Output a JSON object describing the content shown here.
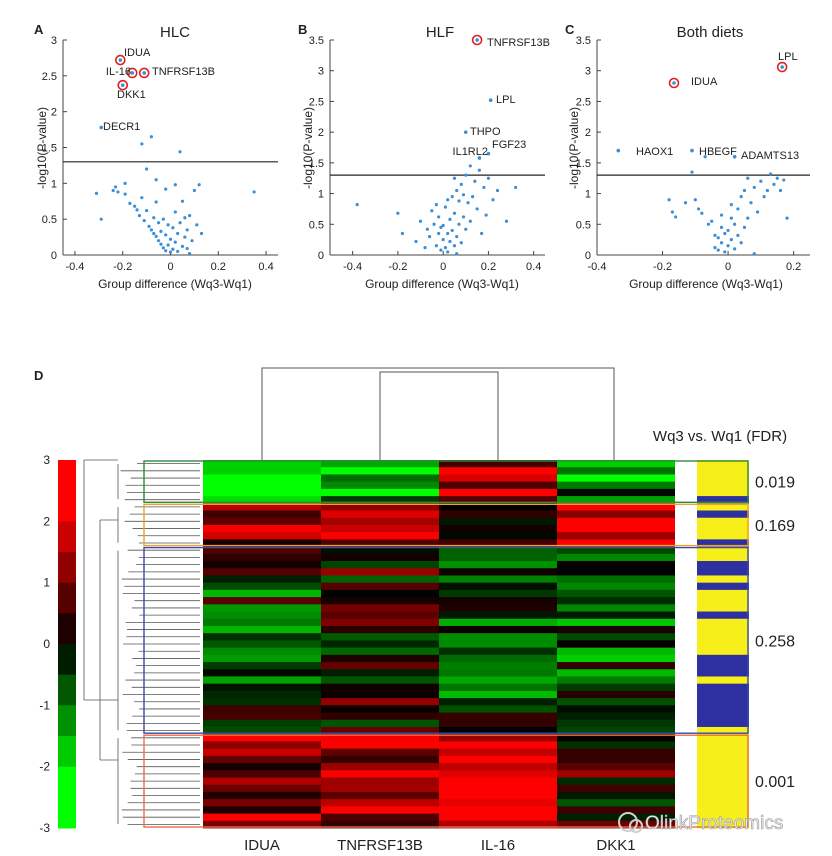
{
  "chart_data": [
    {
      "type": "scatter",
      "panel_label": "A",
      "title": "HLC",
      "xlabel": "Group difference (Wq3-Wq1)",
      "ylabel": "-log10(P-value)",
      "xlim": [
        -0.45,
        0.45
      ],
      "ylim": [
        0,
        3
      ],
      "xticks": [
        -0.4,
        -0.2,
        0,
        0.2,
        0.4
      ],
      "xtick_labels": [
        "-0.4",
        "-0.2",
        "0",
        "0.2",
        "0.4"
      ],
      "yticks": [
        0,
        0.5,
        1,
        1.5,
        2,
        2.5,
        3
      ],
      "ytick_labels": [
        "0",
        "0.5",
        "1",
        "1.5",
        "2",
        "2.5",
        "3"
      ],
      "threshold": 1.3,
      "labeled_points": [
        {
          "label": "IDUA",
          "x": -0.21,
          "y": 2.72,
          "circled": true
        },
        {
          "label": "IL-16",
          "x": -0.16,
          "y": 2.54,
          "circled": true
        },
        {
          "label": "TNFRSF13B",
          "x": -0.11,
          "y": 2.54,
          "circled": true
        },
        {
          "label": "DKK1",
          "x": -0.2,
          "y": 2.37,
          "circled": true
        },
        {
          "label": "DECR1",
          "x": -0.29,
          "y": 1.78,
          "circled": false
        }
      ],
      "points": [
        [
          -0.31,
          0.86
        ],
        [
          -0.29,
          0.5
        ],
        [
          -0.24,
          0.9
        ],
        [
          -0.23,
          0.95
        ],
        [
          -0.22,
          0.88
        ],
        [
          -0.19,
          1.0
        ],
        [
          -0.19,
          0.85
        ],
        [
          -0.17,
          0.72
        ],
        [
          -0.15,
          0.68
        ],
        [
          -0.14,
          0.63
        ],
        [
          -0.13,
          0.55
        ],
        [
          -0.12,
          1.55
        ],
        [
          -0.11,
          0.48
        ],
        [
          -0.1,
          0.62
        ],
        [
          -0.1,
          1.2
        ],
        [
          -0.09,
          0.4
        ],
        [
          -0.08,
          0.35
        ],
        [
          -0.08,
          1.65
        ],
        [
          -0.07,
          0.52
        ],
        [
          -0.07,
          0.3
        ],
        [
          -0.06,
          0.26
        ],
        [
          -0.06,
          1.05
        ],
        [
          -0.05,
          0.45
        ],
        [
          -0.05,
          0.2
        ],
        [
          -0.04,
          0.33
        ],
        [
          -0.04,
          0.15
        ],
        [
          -0.03,
          0.5
        ],
        [
          -0.03,
          0.1
        ],
        [
          -0.02,
          0.28
        ],
        [
          -0.02,
          0.06
        ],
        [
          -0.01,
          0.42
        ],
        [
          -0.01,
          0.14
        ],
        [
          0.0,
          0.04
        ],
        [
          0.0,
          0.22
        ],
        [
          0.01,
          0.08
        ],
        [
          0.01,
          0.38
        ],
        [
          0.02,
          0.18
        ],
        [
          0.02,
          0.6
        ],
        [
          0.03,
          0.3
        ],
        [
          0.03,
          0.05
        ],
        [
          0.04,
          1.44
        ],
        [
          0.04,
          0.45
        ],
        [
          0.05,
          0.12
        ],
        [
          0.05,
          0.75
        ],
        [
          0.06,
          0.25
        ],
        [
          0.06,
          0.52
        ],
        [
          0.07,
          0.35
        ],
        [
          0.07,
          0.09
        ],
        [
          0.08,
          0.55
        ],
        [
          0.09,
          0.2
        ],
        [
          0.1,
          0.9
        ],
        [
          0.11,
          0.42
        ],
        [
          0.12,
          0.98
        ],
        [
          0.13,
          0.3
        ],
        [
          0.35,
          0.88
        ],
        [
          0.08,
          0.02
        ],
        [
          -0.02,
          0.92
        ],
        [
          -0.12,
          0.8
        ],
        [
          0.02,
          0.98
        ],
        [
          -0.06,
          0.74
        ]
      ]
    },
    {
      "type": "scatter",
      "panel_label": "B",
      "title": "HLF",
      "xlabel": "Group difference (Wq3-Wq1)",
      "ylabel": "-log10(P-value)",
      "xlim": [
        -0.5,
        0.45
      ],
      "ylim": [
        0,
        3.5
      ],
      "xticks": [
        -0.4,
        -0.2,
        0,
        0.2,
        0.4
      ],
      "xtick_labels": [
        "-0.4",
        "-0.2",
        "0",
        "0.2",
        "0.4"
      ],
      "yticks": [
        0,
        0.5,
        1,
        1.5,
        2,
        2.5,
        3,
        3.5
      ],
      "ytick_labels": [
        "0",
        "0.5",
        "1",
        "1.5",
        "2",
        "2.5",
        "3",
        "3.5"
      ],
      "threshold": 1.3,
      "labeled_points": [
        {
          "label": "TNFRSF13B",
          "x": 0.15,
          "y": 3.5,
          "circled": true
        },
        {
          "label": "LPL",
          "x": 0.21,
          "y": 2.52,
          "circled": false
        },
        {
          "label": "THPO",
          "x": 0.1,
          "y": 2.0,
          "circled": false
        },
        {
          "label": "FGF23",
          "x": 0.2,
          "y": 1.65,
          "circled": false
        },
        {
          "label": "IL1RL2",
          "x": 0.16,
          "y": 1.58,
          "circled": false
        }
      ],
      "points": [
        [
          -0.38,
          0.82
        ],
        [
          -0.2,
          0.68
        ],
        [
          -0.18,
          0.35
        ],
        [
          -0.12,
          0.22
        ],
        [
          -0.1,
          0.55
        ],
        [
          -0.08,
          0.12
        ],
        [
          -0.07,
          0.42
        ],
        [
          -0.06,
          0.3
        ],
        [
          -0.05,
          0.72
        ],
        [
          -0.04,
          0.5
        ],
        [
          -0.03,
          0.15
        ],
        [
          -0.02,
          0.62
        ],
        [
          -0.02,
          0.35
        ],
        [
          -0.01,
          0.08
        ],
        [
          0.0,
          0.25
        ],
        [
          0.0,
          0.48
        ],
        [
          0.01,
          0.12
        ],
        [
          0.01,
          0.78
        ],
        [
          0.02,
          0.35
        ],
        [
          0.02,
          0.05
        ],
        [
          0.03,
          0.58
        ],
        [
          0.03,
          0.22
        ],
        [
          0.04,
          0.95
        ],
        [
          0.04,
          0.4
        ],
        [
          0.05,
          0.15
        ],
        [
          0.05,
          0.68
        ],
        [
          0.06,
          1.05
        ],
        [
          0.06,
          0.3
        ],
        [
          0.07,
          0.5
        ],
        [
          0.07,
          0.88
        ],
        [
          0.08,
          1.15
        ],
        [
          0.08,
          0.2
        ],
        [
          0.09,
          0.62
        ],
        [
          0.1,
          1.3
        ],
        [
          0.1,
          0.42
        ],
        [
          0.11,
          0.85
        ],
        [
          0.12,
          1.45
        ],
        [
          0.12,
          0.55
        ],
        [
          0.13,
          0.95
        ],
        [
          0.14,
          1.2
        ],
        [
          0.15,
          0.75
        ],
        [
          0.16,
          1.38
        ],
        [
          0.17,
          0.35
        ],
        [
          0.18,
          1.1
        ],
        [
          0.19,
          0.65
        ],
        [
          0.2,
          1.25
        ],
        [
          0.22,
          0.9
        ],
        [
          0.24,
          1.05
        ],
        [
          0.28,
          0.55
        ],
        [
          0.32,
          1.1
        ],
        [
          0.06,
          0.02
        ],
        [
          0.02,
          0.9
        ],
        [
          -0.03,
          0.82
        ],
        [
          0.09,
          0.98
        ],
        [
          0.05,
          1.25
        ],
        [
          -0.01,
          0.45
        ]
      ]
    },
    {
      "type": "scatter",
      "panel_label": "C",
      "title": "Both diets",
      "xlabel": "Group difference (Wq3-Wq1)",
      "ylabel": "-log10(P-value)",
      "xlim": [
        -0.4,
        0.25
      ],
      "ylim": [
        0,
        3.5
      ],
      "xticks": [
        -0.4,
        -0.2,
        0,
        0.2
      ],
      "xtick_labels": [
        "-0.4",
        "-0.2",
        "0",
        "0.2"
      ],
      "yticks": [
        0,
        0.5,
        1,
        1.5,
        2,
        2.5,
        3,
        3.5
      ],
      "ytick_labels": [
        "0",
        "0.5",
        "1",
        "1.5",
        "2",
        "2.5",
        "3",
        "3.5"
      ],
      "threshold": 1.3,
      "labeled_points": [
        {
          "label": "LPL",
          "x": 0.165,
          "y": 3.06,
          "circled": true
        },
        {
          "label": "IDUA",
          "x": -0.165,
          "y": 2.8,
          "circled": true
        },
        {
          "label": "HAOX1",
          "x": -0.335,
          "y": 1.7,
          "circled": false
        },
        {
          "label": "HBEGF",
          "x": -0.11,
          "y": 1.7,
          "circled": false
        },
        {
          "label": "ADAMTS13",
          "x": 0.02,
          "y": 1.6,
          "circled": false
        }
      ],
      "points": [
        [
          -0.18,
          0.9
        ],
        [
          -0.17,
          0.7
        ],
        [
          -0.16,
          0.62
        ],
        [
          -0.13,
          0.85
        ],
        [
          -0.11,
          1.35
        ],
        [
          -0.1,
          0.9
        ],
        [
          -0.09,
          0.75
        ],
        [
          -0.08,
          0.68
        ],
        [
          -0.07,
          1.6
        ],
        [
          -0.06,
          0.5
        ],
        [
          -0.05,
          0.55
        ],
        [
          -0.04,
          0.32
        ],
        [
          -0.04,
          0.12
        ],
        [
          -0.03,
          0.28
        ],
        [
          -0.03,
          0.08
        ],
        [
          -0.02,
          0.45
        ],
        [
          -0.02,
          0.2
        ],
        [
          -0.01,
          0.35
        ],
        [
          -0.01,
          0.05
        ],
        [
          0.0,
          0.15
        ],
        [
          0.0,
          0.4
        ],
        [
          0.01,
          0.25
        ],
        [
          0.01,
          0.6
        ],
        [
          0.02,
          0.1
        ],
        [
          0.02,
          0.5
        ],
        [
          0.03,
          0.32
        ],
        [
          0.03,
          0.75
        ],
        [
          0.04,
          0.2
        ],
        [
          0.04,
          0.95
        ],
        [
          0.05,
          0.45
        ],
        [
          0.05,
          1.05
        ],
        [
          0.06,
          0.6
        ],
        [
          0.06,
          1.25
        ],
        [
          0.07,
          0.85
        ],
        [
          0.08,
          1.1
        ],
        [
          0.09,
          0.7
        ],
        [
          0.1,
          1.2
        ],
        [
          0.11,
          0.95
        ],
        [
          0.12,
          1.05
        ],
        [
          0.13,
          1.32
        ],
        [
          0.14,
          1.15
        ],
        [
          0.15,
          1.25
        ],
        [
          0.16,
          1.05
        ],
        [
          0.17,
          1.22
        ],
        [
          0.18,
          0.6
        ],
        [
          0.08,
          0.02
        ],
        [
          -0.02,
          0.65
        ],
        [
          0.01,
          0.82
        ]
      ]
    },
    {
      "type": "heatmap",
      "panel_label": "D",
      "columns": [
        "IDUA",
        "TNFRSF13B",
        "IL-16",
        "DKK1"
      ],
      "colorbar_ticks": [
        3,
        2,
        1,
        0,
        -1,
        -2,
        -3
      ],
      "colorbar_tick_labels": [
        "3",
        "2",
        "1",
        "0",
        "-1",
        "-2",
        "-3"
      ],
      "side_title": "Wq3 vs. Wq1 (FDR)",
      "clusters": [
        {
          "name": "cluster-1",
          "fdr": "0.019",
          "box_color": "#2e8b3e",
          "rows": 6,
          "pattern": [
            -1.8,
            -1.6,
            1.5,
            -1.2
          ]
        },
        {
          "name": "cluster-2",
          "fdr": "0.169",
          "box_color": "#f0a030",
          "rows": 6,
          "pattern": [
            1.2,
            1.8,
            0.8,
            2.0
          ]
        },
        {
          "name": "cluster-3",
          "fdr": "0.258",
          "box_color": "#3a4ba8",
          "rows": 26,
          "pattern": [
            -0.4,
            0.3,
            -0.7,
            -0.6
          ]
        },
        {
          "name": "cluster-4",
          "fdr": "0.001",
          "box_color": "#e8704a",
          "rows": 13,
          "pattern": [
            1.3,
            1.6,
            2.4,
            0.4
          ]
        }
      ],
      "watermark": "OlinkProteomics"
    }
  ]
}
